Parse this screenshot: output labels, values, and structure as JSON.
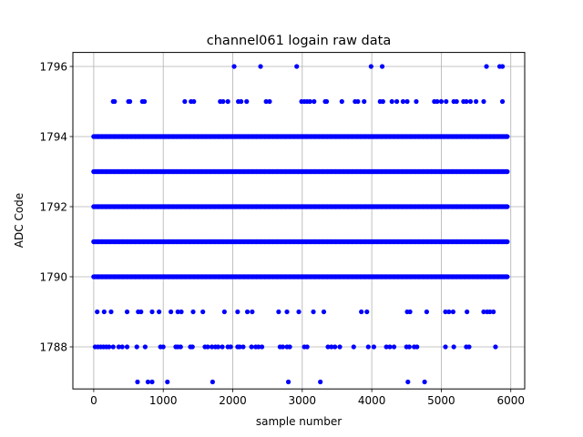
{
  "chart_data": {
    "type": "scatter",
    "title": "channel061 logain raw data",
    "xlabel": "sample number",
    "ylabel": "ADC Code",
    "xlim": [
      -300,
      6200
    ],
    "ylim": [
      1786.8,
      1796.4
    ],
    "xticks": [
      0,
      1000,
      2000,
      3000,
      4000,
      5000,
      6000
    ],
    "yticks": [
      1788,
      1790,
      1792,
      1794,
      1796
    ],
    "grid": true,
    "marker_color": "#0000ff",
    "series": [
      {
        "dense_levels": [
          1790,
          1791,
          1792,
          1793,
          1794
        ],
        "x_range": [
          0,
          5950
        ],
        "sparse_points": {
          "1796": [
            2020,
            2400,
            2920,
            3990,
            4150,
            5650,
            5840,
            5880
          ],
          "1795": [
            280,
            300,
            500,
            520,
            700,
            730,
            1310,
            1400,
            1440,
            1820,
            1860,
            1930,
            2080,
            2120,
            2200,
            2480,
            2530,
            2990,
            3030,
            3070,
            3110,
            3170,
            3330,
            3350,
            3570,
            3760,
            3800,
            3890,
            4120,
            4160,
            4290,
            4360,
            4450,
            4510,
            4640,
            4900,
            4940,
            5000,
            5070,
            5180,
            5220,
            5320,
            5360,
            5420,
            5500,
            5610,
            5880
          ],
          "1789": [
            50,
            150,
            250,
            480,
            640,
            680,
            840,
            940,
            1110,
            1210,
            1260,
            1430,
            1570,
            1880,
            2070,
            2210,
            2280,
            2660,
            2780,
            2950,
            3160,
            3310,
            3850,
            3930,
            4510,
            4550,
            4790,
            5060,
            5110,
            5170,
            5370,
            5610,
            5660,
            5700,
            5750
          ],
          "1788": [
            20,
            60,
            100,
            140,
            180,
            220,
            280,
            360,
            410,
            480,
            620,
            740,
            960,
            1000,
            1180,
            1210,
            1250,
            1390,
            1420,
            1600,
            1640,
            1700,
            1750,
            1790,
            1850,
            1930,
            1970,
            2070,
            2100,
            2150,
            2270,
            2330,
            2370,
            2420,
            2680,
            2720,
            2780,
            2820,
            3030,
            3070,
            3370,
            3420,
            3470,
            3540,
            3740,
            3950,
            4030,
            4210,
            4260,
            4320,
            4500,
            4540,
            4610,
            4650,
            5060,
            5180,
            5360,
            5400,
            5780
          ],
          "1787": [
            630,
            780,
            840,
            1060,
            1710,
            2800,
            3260,
            4520,
            4760
          ]
        }
      }
    ]
  }
}
